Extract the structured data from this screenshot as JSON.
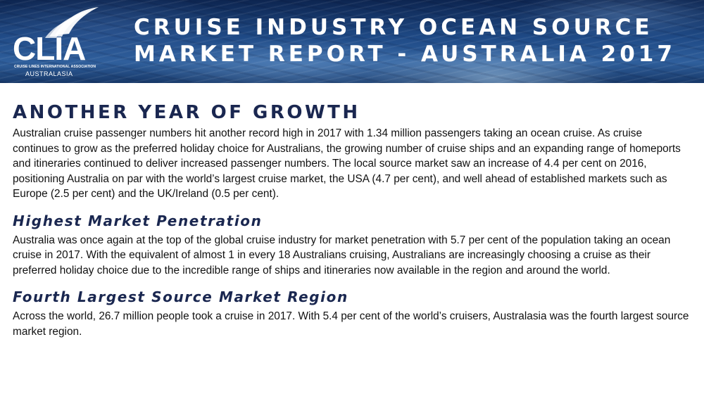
{
  "banner": {
    "logo": {
      "wordmark": "CLIA",
      "association": "CRUISE LINES INTERNATIONAL ASSOCIATION",
      "region": "AUSTRALASIA"
    },
    "title_line1": "CRUISE INDUSTRY OCEAN SOURCE",
    "title_line2": "MARKET REPORT - AUSTRALIA 2017"
  },
  "sections": [
    {
      "heading": "ANOTHER YEAR OF GROWTH",
      "body": "Australian cruise passenger numbers hit another record high in 2017 with 1.34 million passengers taking an ocean cruise. As cruise continues to grow as the preferred holiday choice for Australians, the growing number of cruise ships and an expanding range of homeports and itineraries continued to deliver increased passenger numbers. The local source market saw an increase of 4.4 per cent on 2016, positioning Australia on par with the world’s largest cruise market, the USA (4.7 per cent), and well ahead of established markets such as Europe (2.5 per cent) and the UK/Ireland (0.5 per cent)."
    },
    {
      "heading": "Highest Market Penetration",
      "body": "Australia was once again at the top of the global cruise industry for market penetration with 5.7 per cent of the population taking an ocean cruise in 2017. With the equivalent of almost 1 in every 18 Australians cruising, Australians are increasingly choosing a cruise as their preferred holiday choice due to the incredible range of ships and itineraries now available in the region and around the world."
    },
    {
      "heading": "Fourth Largest Source Market Region",
      "body": "Across the world, 26.7 million people took a cruise in 2017. With 5.4 per cent of the world’s cruisers, Australasia was the fourth largest source market region."
    }
  ],
  "colors": {
    "heading": "#1a2750",
    "banner_dark": "#0d2550",
    "banner_mid": "#2f5f9c",
    "text": "#111111"
  }
}
